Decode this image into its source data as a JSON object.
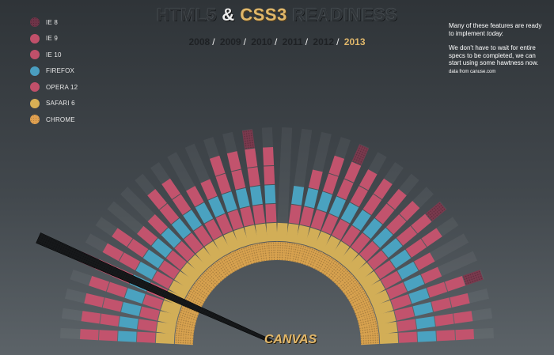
{
  "header": {
    "title_html5": "HTML5",
    "title_amp": "&",
    "title_css3": "CSS3",
    "title_readiness": "READINESS"
  },
  "years": {
    "list": [
      "2008",
      "2009",
      "2010",
      "2011",
      "2012",
      "2013"
    ],
    "separator": "/",
    "selected": "2013"
  },
  "legend": [
    {
      "label": "IE 8",
      "color": "#7a3a4e"
    },
    {
      "label": "IE 9",
      "color": "#c0506a"
    },
    {
      "label": "IE 10",
      "color": "#c0506a"
    },
    {
      "label": "FIREFOX",
      "color": "#4a9ec0"
    },
    {
      "label": "OPERA 12",
      "color": "#c0506a"
    },
    {
      "label": "SAFARI 6",
      "color": "#d8b055"
    },
    {
      "label": "CHROME",
      "color": "#e0a050"
    }
  ],
  "note": {
    "line1": "Many of these features are ready to implement",
    "line1_em": "today.",
    "line2": "We don't have to wait for entire specs to be completed, we can start using some hawtness now.",
    "source": "data from canuse.com"
  },
  "feature_label": "CANVAS",
  "colors": {
    "chrome": "#d8a24f",
    "safari": "#d2ae57",
    "opera": "#c2536d",
    "firefox": "#4aa2c0",
    "ie10": "#c2536d",
    "ie9": "#c2536d",
    "ie8": "#7a3a4e",
    "pointer": "#16181a"
  },
  "feature_support": {
    "layers": [
      "chrome",
      "safari",
      "opera",
      "firefox",
      "ie10",
      "ie9",
      "ie8"
    ],
    "fills": [
      [
        1,
        1,
        1,
        1,
        1,
        1,
        0
      ],
      [
        1,
        1,
        1,
        1,
        1,
        1,
        0
      ],
      [
        1,
        1,
        1,
        1,
        1,
        1,
        0
      ],
      [
        1,
        1,
        1,
        1,
        1,
        1,
        0
      ],
      [
        1,
        1,
        1,
        1,
        1,
        1,
        1
      ],
      [
        1,
        1,
        1,
        1,
        1,
        1,
        0
      ],
      [
        1,
        1,
        1,
        1,
        1,
        1,
        0
      ],
      [
        1,
        1,
        1,
        1,
        1,
        0,
        0
      ],
      [
        1,
        1,
        1,
        1,
        1,
        0,
        0
      ],
      [
        1,
        1,
        1,
        1,
        1,
        1,
        0
      ],
      [
        1,
        1,
        1,
        1,
        1,
        1,
        0
      ],
      [
        1,
        1,
        1,
        1,
        1,
        0,
        0
      ],
      [
        1,
        1,
        1,
        1,
        1,
        0,
        0
      ],
      [
        1,
        1,
        1,
        1,
        1,
        1,
        0
      ],
      [
        1,
        1,
        1,
        1,
        1,
        1,
        0
      ],
      [
        1,
        1,
        1,
        1,
        1,
        1,
        1
      ],
      [
        1,
        1,
        1,
        1,
        1,
        1,
        0
      ],
      [
        1,
        1,
        0,
        0,
        0,
        0,
        0
      ],
      [
        1,
        1,
        1,
        1,
        0,
        0,
        0
      ],
      [
        1,
        1,
        1,
        1,
        1,
        0,
        0
      ],
      [
        1,
        1,
        1,
        1,
        1,
        1,
        0
      ],
      [
        1,
        1,
        1,
        1,
        1,
        1,
        1
      ],
      [
        1,
        1,
        1,
        1,
        1,
        1,
        0
      ],
      [
        1,
        1,
        1,
        1,
        1,
        1,
        0
      ],
      [
        1,
        1,
        1,
        1,
        1,
        1,
        0
      ],
      [
        1,
        1,
        1,
        1,
        1,
        1,
        0
      ],
      [
        1,
        1,
        1,
        1,
        1,
        1,
        1
      ],
      [
        1,
        1,
        1,
        1,
        1,
        1,
        0
      ],
      [
        1,
        1,
        1,
        1,
        1,
        0,
        0
      ],
      [
        1,
        1,
        1,
        1,
        1,
        0,
        0
      ],
      [
        1,
        1,
        1,
        1,
        1,
        1,
        1
      ],
      [
        1,
        1,
        1,
        1,
        1,
        1,
        0
      ],
      [
        1,
        1,
        1,
        1,
        1,
        1,
        0
      ],
      [
        1,
        1,
        1,
        1,
        1,
        1,
        0
      ]
    ],
    "selected_index": 4
  }
}
